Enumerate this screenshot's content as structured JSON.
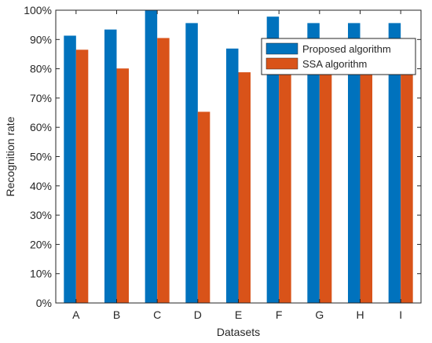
{
  "chart_data": {
    "type": "bar",
    "xlabel": "Datasets",
    "ylabel": "Recognition rate",
    "ylim": [
      0,
      100
    ],
    "yticks": [
      0,
      10,
      20,
      30,
      40,
      50,
      60,
      70,
      80,
      90,
      100
    ],
    "ytick_labels": [
      "0%",
      "10%",
      "20%",
      "30%",
      "40%",
      "50%",
      "60%",
      "70%",
      "80%",
      "90%",
      "100%"
    ],
    "categories": [
      "A",
      "B",
      "C",
      "D",
      "E",
      "F",
      "G",
      "H",
      "I"
    ],
    "series": [
      {
        "name": "Proposed algorithm",
        "color": "#0072BD",
        "values": [
          91.3,
          93.4,
          100,
          95.6,
          86.9,
          97.8,
          95.6,
          95.6,
          95.6
        ]
      },
      {
        "name": "SSA algorithm",
        "color": "#D95319",
        "values": [
          86.5,
          80.1,
          90.5,
          65.3,
          78.8,
          90.0,
          82.8,
          82.8,
          83.2
        ]
      }
    ],
    "legend_location": "top-right",
    "grid": false,
    "box": true
  }
}
